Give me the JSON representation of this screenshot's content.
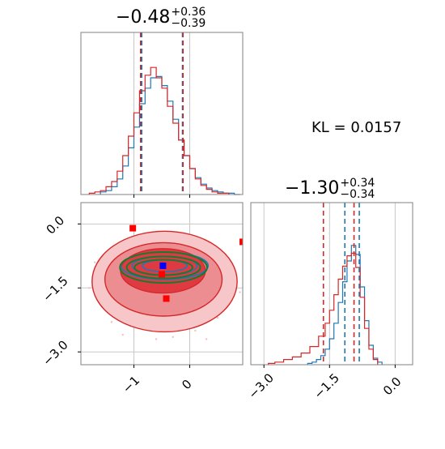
{
  "chart_data": {
    "type": "corner",
    "panels": [
      {
        "id": "hist-x",
        "type": "histogram",
        "title": {
          "value": "−0.48",
          "plus": "+0.36",
          "minus": "−0.39"
        },
        "xlim": [
          -1.95,
          0.95
        ],
        "gridlines_x": [
          -1,
          0
        ],
        "series": [
          {
            "color": "#1f77b4",
            "bins_x": [
              -1.55,
              -1.45,
              -1.35,
              -1.25,
              -1.15,
              -1.05,
              -0.95,
              -0.85,
              -0.75,
              -0.65,
              -0.55,
              -0.45,
              -0.35,
              -0.25,
              -0.15,
              -0.05,
              0.05,
              0.15,
              0.25,
              0.35,
              0.45,
              0.55,
              0.65,
              0.75,
              0.85
            ],
            "density": [
              0.02,
              0.03,
              0.06,
              0.12,
              0.22,
              0.36,
              0.52,
              0.7,
              0.82,
              0.9,
              0.91,
              0.84,
              0.72,
              0.58,
              0.42,
              0.3,
              0.2,
              0.13,
              0.08,
              0.05,
              0.03,
              0.02,
              0.01,
              0.01,
              0.0
            ]
          },
          {
            "color": "#d62728",
            "bins_x": [
              -1.75,
              -1.65,
              -1.55,
              -1.45,
              -1.35,
              -1.25,
              -1.15,
              -1.05,
              -0.95,
              -0.85,
              -0.75,
              -0.65,
              -0.55,
              -0.45,
              -0.35,
              -0.25,
              -0.15,
              -0.05,
              0.05,
              0.15,
              0.25,
              0.35,
              0.45,
              0.55,
              0.65
            ],
            "density": [
              0.01,
              0.02,
              0.03,
              0.06,
              0.1,
              0.18,
              0.3,
              0.45,
              0.63,
              0.8,
              0.92,
              0.98,
              0.9,
              0.82,
              0.68,
              0.55,
              0.42,
              0.3,
              0.2,
              0.12,
              0.07,
              0.04,
              0.02,
              0.01,
              0.01
            ]
          }
        ],
        "quantile_lines": [
          {
            "x": -0.86,
            "color": "#1f77b4"
          },
          {
            "x": -0.13,
            "color": "#1f77b4"
          },
          {
            "x": -0.88,
            "color": "#d62728"
          },
          {
            "x": -0.12,
            "color": "#d62728"
          }
        ]
      },
      {
        "id": "hist-y",
        "type": "histogram",
        "title": {
          "value": "−1.30",
          "plus": "+0.34",
          "minus": "−0.34"
        },
        "xlim": [
          -3.3,
          0.4
        ],
        "xticks": [
          -3.0,
          -1.5,
          0.0
        ],
        "xtick_labels": [
          "−3.0",
          "−1.5",
          "0.0"
        ],
        "gridlines_x": [
          -3.0,
          -1.5,
          0.0
        ],
        "series": [
          {
            "color": "#1f77b4",
            "bins_x": [
              -1.95,
              -1.85,
              -1.75,
              -1.65,
              -1.55,
              -1.45,
              -1.35,
              -1.25,
              -1.15,
              -1.05,
              -0.95,
              -0.85,
              -0.75,
              -0.65,
              -0.55,
              -0.45,
              -0.35
            ],
            "density": [
              0.01,
              0.02,
              0.04,
              0.07,
              0.12,
              0.2,
              0.32,
              0.48,
              0.64,
              0.8,
              0.92,
              0.85,
              0.6,
              0.34,
              0.15,
              0.05,
              0.02
            ]
          },
          {
            "color": "#d62728",
            "bins_x": [
              -2.85,
              -2.65,
              -2.45,
              -2.25,
              -2.05,
              -1.85,
              -1.65,
              -1.55,
              -1.45,
              -1.35,
              -1.25,
              -1.15,
              -1.05,
              -0.95,
              -0.85,
              -0.75,
              -0.65,
              -0.55,
              -0.45
            ],
            "density": [
              0.01,
              0.02,
              0.04,
              0.06,
              0.09,
              0.14,
              0.22,
              0.32,
              0.42,
              0.54,
              0.66,
              0.76,
              0.84,
              0.86,
              0.75,
              0.52,
              0.28,
              0.12,
              0.04
            ]
          }
        ],
        "quantile_lines": [
          {
            "x": -1.64,
            "color": "#d62728"
          },
          {
            "x": -1.15,
            "color": "#1f77b4"
          },
          {
            "x": -0.94,
            "color": "#d62728"
          },
          {
            "x": -0.82,
            "color": "#1f77b4"
          }
        ]
      },
      {
        "id": "joint",
        "type": "contour",
        "xlim": [
          -1.95,
          0.95
        ],
        "ylim": [
          -3.3,
          0.5
        ],
        "xticks": [
          -1,
          0
        ],
        "xtick_labels": [
          "−1",
          "0"
        ],
        "yticks": [
          0.0,
          -1.5,
          -3.0
        ],
        "ytick_labels": [
          "0.0",
          "−1.5",
          "−3.0"
        ],
        "gridlines_x": [
          -1,
          0
        ],
        "gridlines_y": [
          0.0,
          -1.5,
          -3.0
        ],
        "filled_contours": [
          {
            "color": "#f7c6c8",
            "cx": -0.45,
            "cy": -1.35,
            "rx": 1.3,
            "ry": 1.18
          },
          {
            "color": "#eb8d91",
            "cx": -0.47,
            "cy": -1.3,
            "rx": 1.05,
            "ry": 0.86
          },
          {
            "color": "#df3a41",
            "cx": -0.48,
            "cy": -1.1,
            "rx": 0.76,
            "ry": 0.52
          }
        ],
        "blue_contours": [
          {
            "cx": -0.45,
            "cy": -0.98,
            "rx": 0.78,
            "ry": 0.32
          },
          {
            "cx": -0.45,
            "cy": -0.98,
            "rx": 0.58,
            "ry": 0.22
          },
          {
            "cx": -0.45,
            "cy": -0.98,
            "rx": 0.4,
            "ry": 0.14
          }
        ],
        "green_contours": [
          {
            "cx": -0.47,
            "cy": -1.02,
            "rx": 0.78,
            "ry": 0.36
          },
          {
            "cx": -0.47,
            "cy": -1.02,
            "rx": 0.66,
            "ry": 0.26
          },
          {
            "cx": -0.47,
            "cy": -1.02,
            "rx": 0.52,
            "ry": 0.18
          }
        ],
        "markers": [
          {
            "x": -1.02,
            "y": -0.1,
            "color": "#ff0000"
          },
          {
            "x": 0.95,
            "y": -0.42,
            "color": "#ff0000"
          },
          {
            "x": -0.48,
            "y": -0.98,
            "color": "#0000ff"
          },
          {
            "x": -0.5,
            "y": -1.18,
            "color": "#ff0000"
          },
          {
            "x": -0.42,
            "y": -1.75,
            "color": "#ff0000"
          }
        ],
        "scatter_points": [
          [
            -1.3,
            -0.6
          ],
          [
            0.4,
            -0.7
          ],
          [
            -1.5,
            -1.8
          ],
          [
            0.6,
            -1.9
          ],
          [
            -0.9,
            -2.4
          ],
          [
            0.1,
            -2.5
          ],
          [
            -1.6,
            -1.2
          ],
          [
            0.8,
            -1.3
          ],
          [
            -0.2,
            -2.3
          ],
          [
            -1.1,
            -2.2
          ],
          [
            0.5,
            -2.2
          ],
          [
            -1.7,
            -0.9
          ],
          [
            0.7,
            -0.9
          ],
          [
            -0.6,
            -2.7
          ],
          [
            -1.4,
            -2.3
          ],
          [
            0.3,
            -2.7
          ],
          [
            -1.8,
            -1.5
          ],
          [
            0.9,
            -1.6
          ],
          [
            -1.2,
            -2.6
          ],
          [
            -0.3,
            -2.65
          ]
        ],
        "scatter_color": "#f3b9bf"
      }
    ],
    "annotation": "KL = 0.0157"
  }
}
